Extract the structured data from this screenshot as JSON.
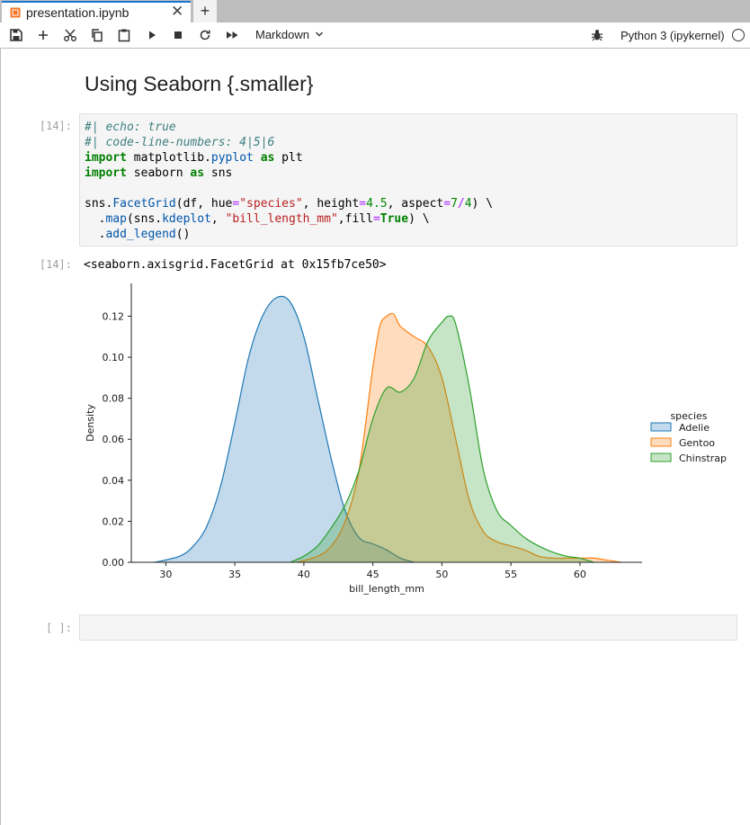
{
  "tab": {
    "title": "presentation.ipynb",
    "close": "✕",
    "new_tab": "+"
  },
  "toolbar": {
    "buttons": [
      "save-icon",
      "add-cell-icon",
      "cut-icon",
      "copy-icon",
      "paste-icon",
      "run-icon",
      "stop-icon",
      "restart-icon",
      "fast-forward-icon"
    ],
    "cell_type": "Markdown",
    "kernel_name": "Python 3 (ipykernel)"
  },
  "notebook": {
    "heading": "Using Seaborn {.smaller}",
    "code_prompt": "[14]:",
    "code_lines": [
      [
        {
          "t": "#| echo: true",
          "c": "cm-comment"
        }
      ],
      [
        {
          "t": "#| code-line-numbers: 4|5|6",
          "c": "cm-comment"
        }
      ],
      [
        {
          "t": "import",
          "c": "cm-keyword"
        },
        {
          "t": " matplotlib."
        },
        {
          "t": "pyplot",
          "c": "cm-prop"
        },
        {
          "t": " "
        },
        {
          "t": "as",
          "c": "cm-keyword"
        },
        {
          "t": " plt"
        }
      ],
      [
        {
          "t": "import",
          "c": "cm-keyword"
        },
        {
          "t": " seaborn "
        },
        {
          "t": "as",
          "c": "cm-keyword"
        },
        {
          "t": " sns"
        }
      ],
      [
        {
          "t": ""
        }
      ],
      [
        {
          "t": "sns."
        },
        {
          "t": "FacetGrid",
          "c": "cm-prop"
        },
        {
          "t": "(df, hue"
        },
        {
          "t": "=",
          "c": "cm-operator"
        },
        {
          "t": "\"species\"",
          "c": "cm-string"
        },
        {
          "t": ", height"
        },
        {
          "t": "=",
          "c": "cm-operator"
        },
        {
          "t": "4.5",
          "c": "cm-number"
        },
        {
          "t": ", aspect"
        },
        {
          "t": "=",
          "c": "cm-operator"
        },
        {
          "t": "7",
          "c": "cm-number"
        },
        {
          "t": "/",
          "c": "cm-operator"
        },
        {
          "t": "4",
          "c": "cm-number"
        },
        {
          "t": ") \\"
        }
      ],
      [
        {
          "t": "  ."
        },
        {
          "t": "map",
          "c": "cm-prop"
        },
        {
          "t": "(sns."
        },
        {
          "t": "kdeplot",
          "c": "cm-prop"
        },
        {
          "t": ", "
        },
        {
          "t": "\"bill_length_mm\"",
          "c": "cm-string"
        },
        {
          "t": ",fill"
        },
        {
          "t": "=",
          "c": "cm-operator"
        },
        {
          "t": "True",
          "c": "cm-keyword"
        },
        {
          "t": ") \\"
        }
      ],
      [
        {
          "t": "  ."
        },
        {
          "t": "add_legend",
          "c": "cm-prop"
        },
        {
          "t": "()"
        }
      ]
    ],
    "output_prompt": "[14]:",
    "output_text": "<seaborn.axisgrid.FacetGrid at 0x15fb7ce50>",
    "empty_prompt": "[ ]:"
  },
  "chart_data": {
    "type": "area",
    "xlabel": "bill_length_mm",
    "ylabel": "Density",
    "xlim": [
      27.5,
      64.5
    ],
    "ylim": [
      0,
      0.136
    ],
    "xticks": [
      30,
      35,
      40,
      45,
      50,
      55,
      60
    ],
    "yticks": [
      0.0,
      0.02,
      0.04,
      0.06,
      0.08,
      0.1,
      0.12
    ],
    "ytick_labels": [
      "0.00",
      "0.02",
      "0.04",
      "0.06",
      "0.08",
      "0.10",
      "0.12"
    ],
    "legend_title": "species",
    "legend_placement": "right",
    "series": [
      {
        "name": "Adelie",
        "color": "#1f77b4",
        "x": [
          29.2,
          31,
          32,
          33,
          34,
          35,
          36,
          37,
          38,
          39,
          40,
          41,
          42,
          43,
          44,
          45,
          46,
          47,
          48
        ],
        "y": [
          0.0,
          0.003,
          0.008,
          0.018,
          0.038,
          0.068,
          0.1,
          0.12,
          0.129,
          0.127,
          0.11,
          0.08,
          0.05,
          0.025,
          0.012,
          0.009,
          0.006,
          0.002,
          0.0
        ]
      },
      {
        "name": "Gentoo",
        "color": "#ff7f0e",
        "x": [
          39.5,
          41,
          42,
          43,
          44,
          45,
          45.5,
          46,
          46.5,
          47,
          48,
          49,
          50,
          51,
          52,
          53,
          54,
          55,
          56,
          57,
          58,
          59,
          60,
          61,
          62,
          63
        ],
        "y": [
          0.0,
          0.003,
          0.008,
          0.02,
          0.045,
          0.095,
          0.115,
          0.12,
          0.121,
          0.115,
          0.11,
          0.105,
          0.09,
          0.06,
          0.03,
          0.015,
          0.01,
          0.008,
          0.006,
          0.003,
          0.002,
          0.002,
          0.002,
          0.002,
          0.001,
          0.0
        ]
      },
      {
        "name": "Chinstrap",
        "color": "#2ca02c",
        "x": [
          39,
          40,
          41,
          42,
          43,
          44,
          45,
          46,
          47,
          48,
          49,
          50,
          50.5,
          51,
          52,
          53,
          54,
          55,
          56,
          57,
          58,
          59,
          60,
          61
        ],
        "y": [
          0.0,
          0.003,
          0.008,
          0.017,
          0.028,
          0.045,
          0.07,
          0.085,
          0.083,
          0.09,
          0.108,
          0.117,
          0.12,
          0.116,
          0.085,
          0.045,
          0.025,
          0.018,
          0.012,
          0.008,
          0.005,
          0.003,
          0.002,
          0.0
        ]
      }
    ]
  }
}
